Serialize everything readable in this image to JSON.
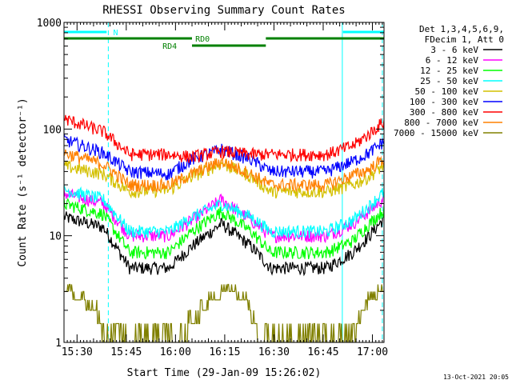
{
  "chart_data": {
    "type": "line",
    "title": "RHESSI Observing Summary Count Rates",
    "xlabel": "Start Time (29-Jan-09 15:26:02)",
    "ylabel": "Count Rate (s⁻¹ detector⁻¹)",
    "yscale": "log",
    "ylim": [
      1,
      1000
    ],
    "xlim_minutes": [
      0,
      97.5
    ],
    "y_ticks": [
      {
        "value": 1,
        "label": "1"
      },
      {
        "value": 10,
        "label": "10"
      },
      {
        "value": 100,
        "label": "100"
      },
      {
        "value": 1000,
        "label": "1000"
      }
    ],
    "x_ticks": [
      {
        "minute": 3.97,
        "label": "15:30"
      },
      {
        "minute": 18.97,
        "label": "15:45"
      },
      {
        "minute": 33.97,
        "label": "16:00"
      },
      {
        "minute": 48.97,
        "label": "16:15"
      },
      {
        "minute": 63.97,
        "label": "16:30"
      },
      {
        "minute": 78.97,
        "label": "16:45"
      },
      {
        "minute": 93.97,
        "label": "17:00"
      }
    ],
    "legend_header": [
      "Det 1,3,4,5,6,9,",
      "FDecim 1, Att 0"
    ],
    "series": [
      {
        "name": "3 - 6 keV",
        "color": "#000000",
        "key": [
          [
            0,
            15
          ],
          [
            12,
            12
          ],
          [
            20,
            5
          ],
          [
            32,
            5
          ],
          [
            39,
            8
          ],
          [
            48,
            13
          ],
          [
            57,
            8
          ],
          [
            63,
            5
          ],
          [
            80,
            5
          ],
          [
            88,
            7
          ],
          [
            93,
            10
          ],
          [
            97,
            14
          ]
        ]
      },
      {
        "name": "6 - 12 keV",
        "color": "#ff00ff",
        "key": [
          [
            0,
            25
          ],
          [
            12,
            20
          ],
          [
            20,
            10
          ],
          [
            32,
            10
          ],
          [
            39,
            14
          ],
          [
            48,
            22
          ],
          [
            57,
            14
          ],
          [
            63,
            10
          ],
          [
            80,
            10
          ],
          [
            88,
            13
          ],
          [
            93,
            17
          ],
          [
            97,
            22
          ]
        ]
      },
      {
        "name": "12 - 25 keV",
        "color": "#00ff00",
        "key": [
          [
            0,
            20
          ],
          [
            12,
            16
          ],
          [
            20,
            7
          ],
          [
            32,
            7
          ],
          [
            39,
            11
          ],
          [
            48,
            17
          ],
          [
            57,
            11
          ],
          [
            63,
            7
          ],
          [
            80,
            7
          ],
          [
            88,
            9
          ],
          [
            93,
            13
          ],
          [
            97,
            17
          ]
        ]
      },
      {
        "name": "25 - 50 keV",
        "color": "#00ffff",
        "key": [
          [
            0,
            27
          ],
          [
            12,
            22
          ],
          [
            20,
            11
          ],
          [
            32,
            11
          ],
          [
            39,
            15
          ],
          [
            48,
            20
          ],
          [
            57,
            15
          ],
          [
            63,
            11
          ],
          [
            80,
            11
          ],
          [
            88,
            14
          ],
          [
            93,
            19
          ],
          [
            97,
            25
          ]
        ]
      },
      {
        "name": "50 - 100 keV",
        "color": "#d4c000",
        "key": [
          [
            0,
            45
          ],
          [
            12,
            38
          ],
          [
            20,
            26
          ],
          [
            32,
            27
          ],
          [
            39,
            36
          ],
          [
            48,
            48
          ],
          [
            57,
            36
          ],
          [
            63,
            26
          ],
          [
            80,
            26
          ],
          [
            88,
            30
          ],
          [
            93,
            36
          ],
          [
            97,
            45
          ]
        ]
      },
      {
        "name": "100 - 300 keV",
        "color": "#0000ff",
        "key": [
          [
            0,
            80
          ],
          [
            12,
            60
          ],
          [
            20,
            40
          ],
          [
            32,
            38
          ],
          [
            34,
            42
          ],
          [
            39,
            52
          ],
          [
            48,
            65
          ],
          [
            57,
            52
          ],
          [
            63,
            40
          ],
          [
            80,
            40
          ],
          [
            88,
            50
          ],
          [
            93,
            60
          ],
          [
            97,
            75
          ]
        ]
      },
      {
        "name": "300 - 800 keV",
        "color": "#ff0000",
        "key": [
          [
            0,
            125
          ],
          [
            12,
            95
          ],
          [
            20,
            58
          ],
          [
            32,
            58
          ],
          [
            39,
            55
          ],
          [
            48,
            62
          ],
          [
            57,
            58
          ],
          [
            63,
            58
          ],
          [
            80,
            58
          ],
          [
            88,
            70
          ],
          [
            93,
            90
          ],
          [
            97,
            115
          ]
        ]
      },
      {
        "name": "800 - 7000 keV",
        "color": "#ff8000",
        "key": [
          [
            0,
            60
          ],
          [
            12,
            47
          ],
          [
            20,
            30
          ],
          [
            32,
            30
          ],
          [
            39,
            38
          ],
          [
            48,
            50
          ],
          [
            57,
            38
          ],
          [
            63,
            30
          ],
          [
            80,
            30
          ],
          [
            88,
            37
          ],
          [
            93,
            42
          ],
          [
            97,
            52
          ]
        ]
      },
      {
        "name": "7000 - 15000 keV",
        "color": "#808000",
        "key": [
          [
            0,
            3
          ],
          [
            5,
            2.5
          ],
          [
            10,
            1.8
          ],
          [
            12.5,
            1
          ],
          [
            35,
            1
          ],
          [
            40,
            1.5
          ],
          [
            45,
            2.5
          ],
          [
            50,
            3
          ],
          [
            55,
            2.5
          ],
          [
            58,
            1.5
          ],
          [
            60,
            1
          ],
          [
            88,
            1
          ],
          [
            91,
            2
          ],
          [
            94,
            2.5
          ],
          [
            97,
            3
          ]
        ]
      }
    ],
    "annotations": [
      {
        "label": "N",
        "color": "#00ffff",
        "intervals_minutes": [
          [
            0,
            13
          ],
          [
            85,
            97.5
          ]
        ]
      },
      {
        "label": "RD0",
        "color": "#008000",
        "intervals_minutes": [
          [
            0,
            61.5
          ],
          [
            61.5,
            97.5
          ]
        ]
      },
      {
        "label": "RD4",
        "color": "#008000",
        "intervals_minutes": [
          [
            39,
            61.5
          ]
        ]
      }
    ],
    "vertical_markers": [
      {
        "minute": 0,
        "color": "#00ffff",
        "style": "solid"
      },
      {
        "minute": 13.5,
        "color": "#00ffff",
        "style": "dashed"
      },
      {
        "minute": 84.8,
        "color": "#00ffff",
        "style": "solid"
      },
      {
        "minute": 97.0,
        "color": "#00ffff",
        "style": "dashed"
      }
    ]
  },
  "footer": {
    "timestamp": "13-Oct-2021 20:05"
  }
}
